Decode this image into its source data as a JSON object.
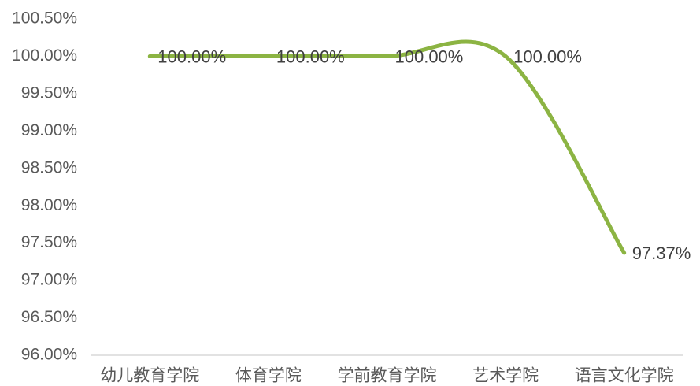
{
  "chart_data": {
    "type": "line",
    "categories": [
      "幼儿教育学院",
      "体育学院",
      "学前教育学院",
      "艺术学院",
      "语言文化学院"
    ],
    "values": [
      100,
      100,
      100,
      100,
      97.37
    ],
    "value_labels": [
      "100.00%",
      "100.00%",
      "100.00%",
      "100.00%",
      "97.37%"
    ],
    "color": "#8cb443",
    "smooth": true,
    "ylim": [
      96,
      100.5
    ],
    "yticks": [
      {
        "value": 96,
        "label": "96.00%"
      },
      {
        "value": 96.5,
        "label": "96.50%"
      },
      {
        "value": 97,
        "label": "97.00%"
      },
      {
        "value": 97.5,
        "label": "97.50%"
      },
      {
        "value": 98,
        "label": "98.00%"
      },
      {
        "value": 98.5,
        "label": "98.50%"
      },
      {
        "value": 99,
        "label": "99.00%"
      },
      {
        "value": 99.5,
        "label": "99.50%"
      },
      {
        "value": 100,
        "label": "100.00%"
      },
      {
        "value": 100.5,
        "label": "100.50%"
      }
    ]
  }
}
